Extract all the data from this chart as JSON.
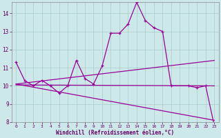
{
  "background_color": "#cce8e8",
  "line_color": "#990099",
  "grid_color": "#aacccc",
  "xlabel": "Windchill (Refroidissement éolien,°C)",
  "xlim": [
    -0.5,
    23.5
  ],
  "ylim": [
    8,
    14.6
  ],
  "yticks": [
    8,
    9,
    10,
    11,
    12,
    13,
    14
  ],
  "xticks": [
    0,
    1,
    2,
    3,
    4,
    5,
    6,
    7,
    8,
    9,
    10,
    11,
    12,
    13,
    14,
    15,
    16,
    17,
    18,
    19,
    20,
    21,
    22,
    23
  ],
  "line1_x": [
    0,
    1,
    2,
    3,
    4,
    5,
    6,
    7,
    8,
    9,
    10,
    11,
    12,
    13,
    14,
    15,
    16,
    17,
    18,
    20,
    21,
    22,
    23
  ],
  "line1_y": [
    11.3,
    10.3,
    10.0,
    10.3,
    10.0,
    9.6,
    10.0,
    11.4,
    10.4,
    10.1,
    11.1,
    12.9,
    12.9,
    13.4,
    14.6,
    13.6,
    13.2,
    13.0,
    10.0,
    10.0,
    9.9,
    10.0,
    7.8
  ],
  "line2_x": [
    0,
    23
  ],
  "line2_y": [
    10.1,
    11.4
  ],
  "line3_x": [
    0,
    23
  ],
  "line3_y": [
    10.05,
    10.0
  ],
  "line4_x": [
    0,
    23
  ],
  "line4_y": [
    10.1,
    8.1
  ]
}
